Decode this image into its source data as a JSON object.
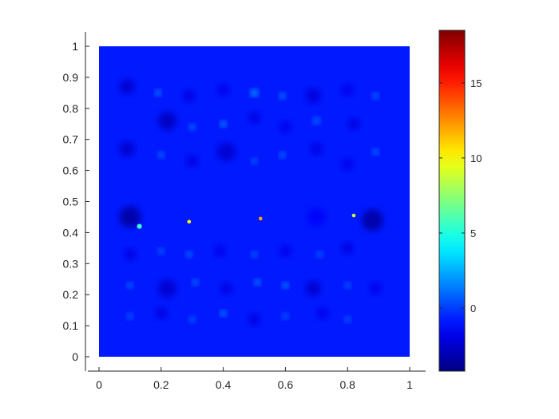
{
  "chart_data": {
    "type": "heatmap",
    "title": "",
    "xlabel": "",
    "ylabel": "",
    "xlim": [
      0,
      1
    ],
    "ylim": [
      0,
      1
    ],
    "x_ticks": [
      0,
      0.2,
      0.4,
      0.6,
      0.8,
      1
    ],
    "x_tick_labels": [
      "0",
      "0.2",
      "0.4",
      "0.6",
      "0.8",
      "1"
    ],
    "y_ticks": [
      0,
      0.1,
      0.2,
      0.3,
      0.4,
      0.5,
      0.6,
      0.7,
      0.8,
      0.9,
      1
    ],
    "y_tick_labels": [
      "0",
      "0.1",
      "0.2",
      "0.3",
      "0.4",
      "0.5",
      "0.6",
      "0.7",
      "0.8",
      "0.9",
      "1"
    ],
    "background_value": -0.8,
    "colorbar": {
      "colormap": "jet",
      "limits": [
        -4.2,
        18.5
      ],
      "ticks": [
        0,
        5,
        10,
        15
      ],
      "tick_labels": [
        "0",
        "5",
        "10",
        "15"
      ]
    },
    "features": [
      {
        "x": 0.09,
        "y": 0.87,
        "v": -2.5,
        "r": 0.025
      },
      {
        "x": 0.19,
        "y": 0.85,
        "v": 2.5,
        "r": 0.01
      },
      {
        "x": 0.29,
        "y": 0.84,
        "v": -2.0,
        "r": 0.02
      },
      {
        "x": 0.4,
        "y": 0.86,
        "v": -1.8,
        "r": 0.02
      },
      {
        "x": 0.5,
        "y": 0.85,
        "v": 3.0,
        "r": 0.012
      },
      {
        "x": 0.59,
        "y": 0.84,
        "v": 2.5,
        "r": 0.01
      },
      {
        "x": 0.69,
        "y": 0.84,
        "v": -2.2,
        "r": 0.025
      },
      {
        "x": 0.8,
        "y": 0.86,
        "v": -1.8,
        "r": 0.02
      },
      {
        "x": 0.89,
        "y": 0.84,
        "v": 2.0,
        "r": 0.01
      },
      {
        "x": 0.22,
        "y": 0.76,
        "v": -2.8,
        "r": 0.03
      },
      {
        "x": 0.3,
        "y": 0.74,
        "v": 2.0,
        "r": 0.01
      },
      {
        "x": 0.4,
        "y": 0.75,
        "v": 3.0,
        "r": 0.01
      },
      {
        "x": 0.5,
        "y": 0.77,
        "v": -2.0,
        "r": 0.02
      },
      {
        "x": 0.6,
        "y": 0.74,
        "v": -1.8,
        "r": 0.02
      },
      {
        "x": 0.7,
        "y": 0.76,
        "v": 1.5,
        "r": 0.012
      },
      {
        "x": 0.82,
        "y": 0.75,
        "v": -2.0,
        "r": 0.02
      },
      {
        "x": 0.09,
        "y": 0.67,
        "v": -2.5,
        "r": 0.025
      },
      {
        "x": 0.2,
        "y": 0.65,
        "v": 2.0,
        "r": 0.01
      },
      {
        "x": 0.3,
        "y": 0.63,
        "v": -2.0,
        "r": 0.02
      },
      {
        "x": 0.41,
        "y": 0.66,
        "v": -2.5,
        "r": 0.03
      },
      {
        "x": 0.5,
        "y": 0.63,
        "v": 1.5,
        "r": 0.01
      },
      {
        "x": 0.59,
        "y": 0.65,
        "v": 2.0,
        "r": 0.01
      },
      {
        "x": 0.7,
        "y": 0.67,
        "v": -2.0,
        "r": 0.02
      },
      {
        "x": 0.8,
        "y": 0.62,
        "v": -1.8,
        "r": 0.02
      },
      {
        "x": 0.89,
        "y": 0.66,
        "v": 2.0,
        "r": 0.01
      },
      {
        "x": 0.1,
        "y": 0.45,
        "v": -3.5,
        "r": 0.035
      },
      {
        "x": 0.13,
        "y": 0.42,
        "v": 5.5,
        "r": 0.008
      },
      {
        "x": 0.29,
        "y": 0.435,
        "v": 10.0,
        "r": 0.006
      },
      {
        "x": 0.52,
        "y": 0.445,
        "v": 12.0,
        "r": 0.006
      },
      {
        "x": 0.82,
        "y": 0.455,
        "v": 9.0,
        "r": 0.006
      },
      {
        "x": 0.88,
        "y": 0.44,
        "v": -3.5,
        "r": 0.035
      },
      {
        "x": 0.7,
        "y": 0.45,
        "v": -1.5,
        "r": 0.03
      },
      {
        "x": 0.1,
        "y": 0.33,
        "v": -2.0,
        "r": 0.02
      },
      {
        "x": 0.2,
        "y": 0.34,
        "v": 1.5,
        "r": 0.01
      },
      {
        "x": 0.29,
        "y": 0.33,
        "v": 2.0,
        "r": 0.01
      },
      {
        "x": 0.39,
        "y": 0.34,
        "v": -1.8,
        "r": 0.02
      },
      {
        "x": 0.5,
        "y": 0.33,
        "v": 1.5,
        "r": 0.01
      },
      {
        "x": 0.6,
        "y": 0.34,
        "v": -1.8,
        "r": 0.02
      },
      {
        "x": 0.71,
        "y": 0.33,
        "v": 1.5,
        "r": 0.01
      },
      {
        "x": 0.8,
        "y": 0.35,
        "v": -2.0,
        "r": 0.02
      },
      {
        "x": 0.22,
        "y": 0.22,
        "v": -2.5,
        "r": 0.03
      },
      {
        "x": 0.1,
        "y": 0.23,
        "v": 1.8,
        "r": 0.01
      },
      {
        "x": 0.31,
        "y": 0.24,
        "v": 2.0,
        "r": 0.01
      },
      {
        "x": 0.41,
        "y": 0.22,
        "v": -2.0,
        "r": 0.02
      },
      {
        "x": 0.51,
        "y": 0.24,
        "v": 2.5,
        "r": 0.01
      },
      {
        "x": 0.6,
        "y": 0.23,
        "v": 2.5,
        "r": 0.01
      },
      {
        "x": 0.69,
        "y": 0.22,
        "v": -2.5,
        "r": 0.025
      },
      {
        "x": 0.8,
        "y": 0.23,
        "v": 1.5,
        "r": 0.01
      },
      {
        "x": 0.89,
        "y": 0.22,
        "v": -1.8,
        "r": 0.02
      },
      {
        "x": 0.1,
        "y": 0.13,
        "v": 1.5,
        "r": 0.01
      },
      {
        "x": 0.2,
        "y": 0.14,
        "v": -2.0,
        "r": 0.02
      },
      {
        "x": 0.3,
        "y": 0.12,
        "v": 1.5,
        "r": 0.01
      },
      {
        "x": 0.4,
        "y": 0.14,
        "v": 2.5,
        "r": 0.01
      },
      {
        "x": 0.5,
        "y": 0.12,
        "v": -2.0,
        "r": 0.02
      },
      {
        "x": 0.6,
        "y": 0.13,
        "v": 1.5,
        "r": 0.01
      },
      {
        "x": 0.72,
        "y": 0.14,
        "v": -1.8,
        "r": 0.02
      },
      {
        "x": 0.8,
        "y": 0.12,
        "v": 1.5,
        "r": 0.01
      }
    ]
  }
}
